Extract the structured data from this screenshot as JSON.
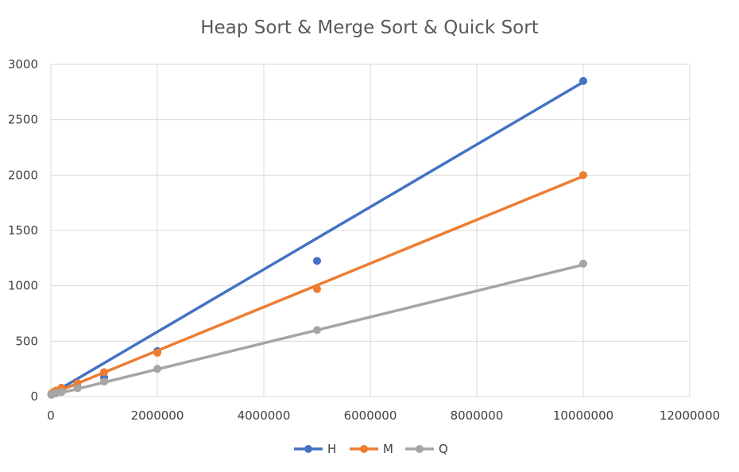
{
  "chart_data": {
    "type": "line",
    "title": "Heap Sort & Merge Sort & Quick Sort",
    "xlabel": "",
    "ylabel": "",
    "xlim": [
      0,
      12000000
    ],
    "ylim": [
      0,
      3000
    ],
    "x_ticks": [
      0,
      2000000,
      4000000,
      6000000,
      8000000,
      10000000,
      12000000
    ],
    "y_ticks": [
      0,
      500,
      1000,
      1500,
      2000,
      2500,
      3000
    ],
    "x_tick_labels": [
      "0",
      "2000000",
      "4000000",
      "6000000",
      "8000000",
      "10000000",
      "12000000"
    ],
    "y_tick_labels": [
      "0",
      "500",
      "1000",
      "1500",
      "2000",
      "2500",
      "3000"
    ],
    "grid": true,
    "legend_position": "bottom",
    "series": [
      {
        "name": "H",
        "color": "#4472C4",
        "points": [
          [
            10000,
            20
          ],
          [
            50000,
            35
          ],
          [
            100000,
            50
          ],
          [
            200000,
            65
          ],
          [
            500000,
            80
          ],
          [
            1000000,
            170
          ],
          [
            2000000,
            410
          ],
          [
            5000000,
            1225
          ],
          [
            10000000,
            2850
          ]
        ],
        "trend": [
          [
            0,
            20
          ],
          [
            10000000,
            2840
          ]
        ]
      },
      {
        "name": "M",
        "color": "#ED7D31",
        "points": [
          [
            10000,
            25
          ],
          [
            50000,
            40
          ],
          [
            100000,
            55
          ],
          [
            200000,
            80
          ],
          [
            500000,
            120
          ],
          [
            1000000,
            220
          ],
          [
            2000000,
            395
          ],
          [
            5000000,
            970
          ],
          [
            10000000,
            2000
          ]
        ],
        "trend": [
          [
            0,
            20
          ],
          [
            10000000,
            1990
          ]
        ]
      },
      {
        "name": "Q",
        "color": "#A5A5A5",
        "points": [
          [
            10000,
            15
          ],
          [
            50000,
            25
          ],
          [
            100000,
            30
          ],
          [
            200000,
            40
          ],
          [
            500000,
            75
          ],
          [
            1000000,
            135
          ],
          [
            2000000,
            250
          ],
          [
            5000000,
            600
          ],
          [
            10000000,
            1200
          ]
        ],
        "trend": [
          [
            0,
            10
          ],
          [
            10000000,
            1190
          ]
        ]
      }
    ]
  }
}
